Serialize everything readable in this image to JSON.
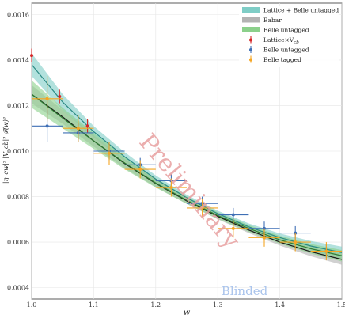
{
  "chart_data": {
    "type": "line",
    "xlabel": "w",
    "ylabel": "|η_ew|² |V_cb|² 𝓕(w)²",
    "xlim": [
      1.0,
      1.5
    ],
    "ylim": [
      0.00035,
      0.00165
    ],
    "xticks": [
      "1.0",
      "1.1",
      "1.2",
      "1.3",
      "1.4",
      "1.5"
    ],
    "xtick_values": [
      1.0,
      1.1,
      1.2,
      1.3,
      1.4,
      1.5
    ],
    "yticks": [
      "0.0004",
      "0.0006",
      "0.0008",
      "0.0010",
      "0.0012",
      "0.0014",
      "0.0016"
    ],
    "ytick_values": [
      0.0004,
      0.0006,
      0.0008,
      0.001,
      0.0012,
      0.0014,
      0.0016
    ],
    "legend_position": "top-right",
    "bands": [
      {
        "name": "Lattice + Belle untagged",
        "color": "#7fcdc6",
        "x": [
          1.0,
          1.05,
          1.1,
          1.15,
          1.2,
          1.25,
          1.3,
          1.35,
          1.4,
          1.45,
          1.5
        ],
        "lower": [
          0.00133,
          0.00118,
          0.00106,
          0.000955,
          0.000862,
          0.000782,
          0.000712,
          0.000652,
          0.000602,
          0.000562,
          0.000528
        ],
        "upper": [
          0.00143,
          0.00125,
          0.00111,
          0.000995,
          0.000893,
          0.000808,
          0.000738,
          0.000682,
          0.000638,
          0.000605,
          0.00058
        ]
      },
      {
        "name": "Babar",
        "color": "#b3b3b3",
        "x": [
          1.0,
          1.05,
          1.1,
          1.15,
          1.2,
          1.25,
          1.3,
          1.35,
          1.4,
          1.45,
          1.5
        ],
        "lower": [
          0.00121,
          0.00112,
          0.00102,
          0.000925,
          0.000842,
          0.000768,
          0.0007,
          0.00064,
          0.000585,
          0.000538,
          0.0005
        ],
        "upper": [
          0.00129,
          0.00118,
          0.00107,
          0.000965,
          0.000875,
          0.000795,
          0.000727,
          0.000667,
          0.000618,
          0.000578,
          0.000548
        ]
      },
      {
        "name": "Belle untagged",
        "color": "#8bd08b",
        "x": [
          1.0,
          1.05,
          1.1,
          1.15,
          1.2,
          1.25,
          1.3,
          1.35,
          1.4,
          1.45,
          1.5
        ],
        "lower": [
          0.00119,
          0.0011,
          0.00101,
          0.00092,
          0.00084,
          0.000768,
          0.000702,
          0.000645,
          0.000593,
          0.00055,
          0.000515
        ],
        "upper": [
          0.00131,
          0.00119,
          0.00108,
          0.000975,
          0.00088,
          0.0008,
          0.000732,
          0.000675,
          0.000628,
          0.000592,
          0.000565
        ]
      }
    ],
    "central_lines": [
      {
        "name": "Lattice + Belle untagged fit",
        "color": "#2a8a84",
        "x": [
          1.0,
          1.05,
          1.1,
          1.15,
          1.2,
          1.25,
          1.3,
          1.35,
          1.4,
          1.45,
          1.5
        ],
        "y": [
          0.00138,
          0.001215,
          0.001085,
          0.000975,
          0.000877,
          0.000795,
          0.000725,
          0.000667,
          0.00062,
          0.000583,
          0.000554
        ]
      },
      {
        "name": "Babar fit",
        "color": "#1a1a1a",
        "x": [
          1.0,
          1.05,
          1.1,
          1.15,
          1.2,
          1.25,
          1.3,
          1.35,
          1.4,
          1.45,
          1.5
        ],
        "y": [
          0.00125,
          0.00115,
          0.001045,
          0.000945,
          0.000858,
          0.000781,
          0.000713,
          0.000653,
          0.0006,
          0.000558,
          0.000524
        ]
      },
      {
        "name": "Belle untagged fit",
        "color": "#2e7d32",
        "x": [
          1.0,
          1.05,
          1.1,
          1.15,
          1.2,
          1.25,
          1.3,
          1.35,
          1.4,
          1.45,
          1.5
        ],
        "y": [
          0.00125,
          0.001145,
          0.001045,
          0.000948,
          0.00086,
          0.000784,
          0.000717,
          0.00066,
          0.00061,
          0.000571,
          0.00054
        ]
      }
    ],
    "series": [
      {
        "name": "Lattice×V_cb",
        "color": "#d62728",
        "points": [
          {
            "x": 1.0,
            "y": 0.00142,
            "xerr": 0.0,
            "yerr": 3e-05
          },
          {
            "x": 1.045,
            "y": 0.00124,
            "xerr": 0.0,
            "yerr": 3e-05
          },
          {
            "x": 1.09,
            "y": 0.00111,
            "xerr": 0.0,
            "yerr": 3e-05
          }
        ]
      },
      {
        "name": "Belle untagged",
        "color": "#3f6fb5",
        "points": [
          {
            "x": 1.025,
            "y": 0.00111,
            "xerr": 0.025,
            "yerr": 7e-05
          },
          {
            "x": 1.075,
            "y": 0.00108,
            "xerr": 0.025,
            "yerr": 4e-05
          },
          {
            "x": 1.125,
            "y": 0.001,
            "xerr": 0.025,
            "yerr": 4e-05
          },
          {
            "x": 1.175,
            "y": 0.00094,
            "xerr": 0.025,
            "yerr": 3e-05
          },
          {
            "x": 1.225,
            "y": 0.00087,
            "xerr": 0.025,
            "yerr": 3e-05
          },
          {
            "x": 1.275,
            "y": 0.00077,
            "xerr": 0.025,
            "yerr": 3e-05
          },
          {
            "x": 1.325,
            "y": 0.00072,
            "xerr": 0.025,
            "yerr": 3e-05
          },
          {
            "x": 1.375,
            "y": 0.00066,
            "xerr": 0.025,
            "yerr": 3e-05
          },
          {
            "x": 1.425,
            "y": 0.00064,
            "xerr": 0.025,
            "yerr": 3e-05
          },
          {
            "x": 1.475,
            "y": 0.00056,
            "xerr": 0.025,
            "yerr": 3e-05
          }
        ]
      },
      {
        "name": "Belle tagged",
        "color": "#f5a623",
        "points": [
          {
            "x": 1.025,
            "y": 0.00123,
            "xerr": 0.025,
            "yerr": 0.0001
          },
          {
            "x": 1.075,
            "y": 0.0011,
            "xerr": 0.025,
            "yerr": 6e-05
          },
          {
            "x": 1.125,
            "y": 0.00099,
            "xerr": 0.025,
            "yerr": 5e-05
          },
          {
            "x": 1.175,
            "y": 0.00092,
            "xerr": 0.025,
            "yerr": 4e-05
          },
          {
            "x": 1.225,
            "y": 0.00084,
            "xerr": 0.025,
            "yerr": 4e-05
          },
          {
            "x": 1.275,
            "y": 0.00075,
            "xerr": 0.025,
            "yerr": 4e-05
          },
          {
            "x": 1.325,
            "y": 0.00066,
            "xerr": 0.025,
            "yerr": 4e-05
          },
          {
            "x": 1.375,
            "y": 0.00062,
            "xerr": 0.025,
            "yerr": 4e-05
          },
          {
            "x": 1.425,
            "y": 0.0006,
            "xerr": 0.025,
            "yerr": 4e-05
          },
          {
            "x": 1.475,
            "y": 0.00056,
            "xerr": 0.025,
            "yerr": 4e-05
          }
        ]
      }
    ],
    "legend": [
      {
        "label": "Lattice + Belle untagged",
        "kind": "band",
        "color": "#7fcdc6"
      },
      {
        "label": "Babar",
        "kind": "band",
        "color": "#b3b3b3"
      },
      {
        "label": "Belle untagged",
        "kind": "band",
        "color": "#8bd08b"
      },
      {
        "label": "Lattice×V",
        "sub": "cb",
        "kind": "point",
        "color": "#d62728"
      },
      {
        "label": "Belle untagged",
        "kind": "point",
        "color": "#3f6fb5"
      },
      {
        "label": "Belle tagged",
        "kind": "point",
        "color": "#f5a623"
      }
    ],
    "watermarks": {
      "preliminary": "Preliminary",
      "blinded": "Blinded"
    }
  }
}
